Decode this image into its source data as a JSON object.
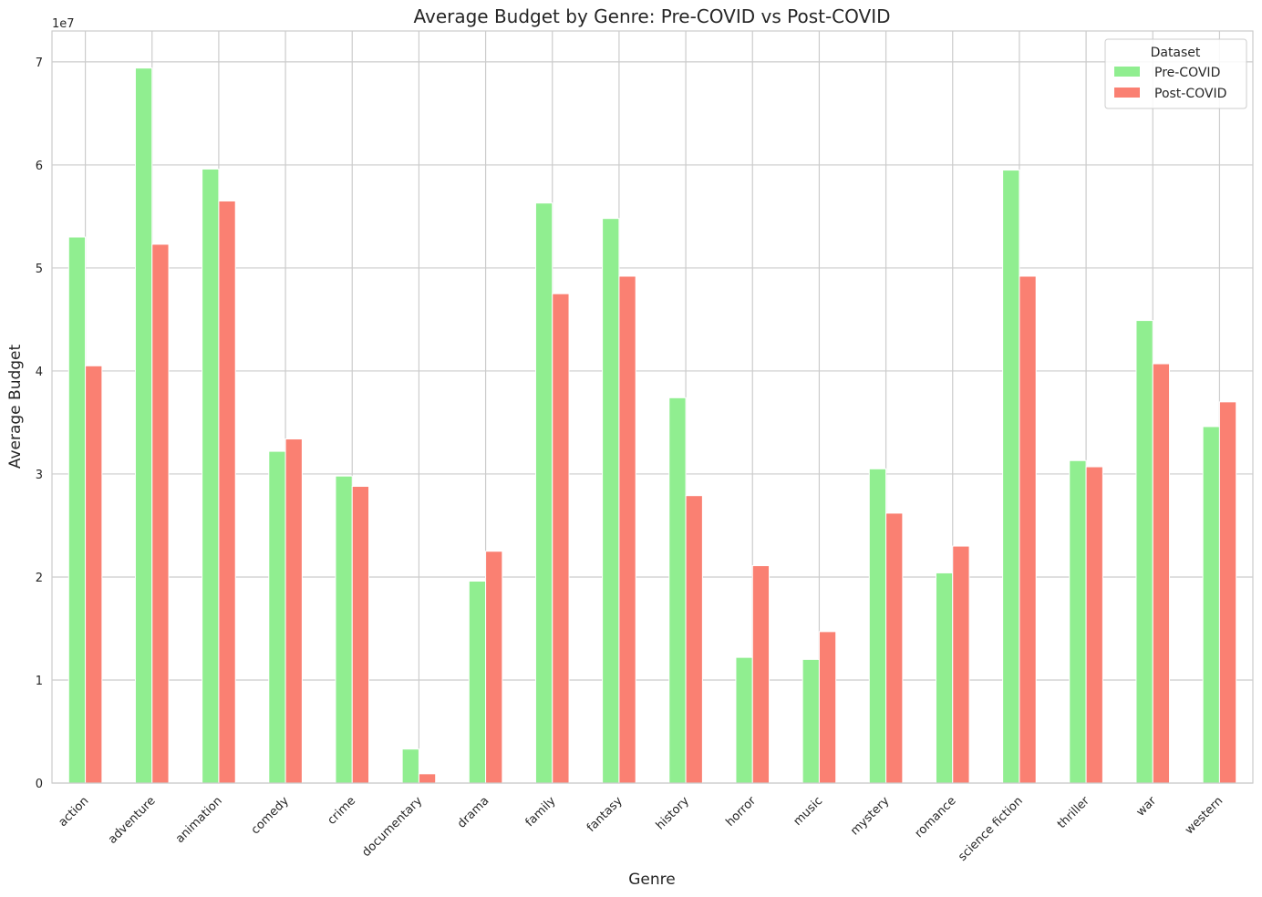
{
  "chart_data": {
    "type": "bar",
    "title": "Average Budget by Genre: Pre-COVID vs Post-COVID",
    "xlabel": "Genre",
    "ylabel": "Average Budget",
    "y_offset_label": "1e7",
    "y_scale": 10000000,
    "ylim": [
      0,
      7.3
    ],
    "yticks": [
      0,
      1,
      2,
      3,
      4,
      5,
      6,
      7
    ],
    "grid": true,
    "legend": {
      "title": "Dataset",
      "placement": "top-right"
    },
    "categories": [
      "action",
      "adventure",
      "animation",
      "comedy",
      "crime",
      "documentary",
      "drama",
      "family",
      "fantasy",
      "history",
      "horror",
      "music",
      "mystery",
      "romance",
      "science fiction",
      "thriller",
      "war",
      "western"
    ],
    "series": [
      {
        "name": "Pre-COVID",
        "color": "#90ee90",
        "values": [
          5.3,
          6.94,
          5.96,
          3.22,
          2.98,
          0.33,
          1.96,
          5.63,
          5.48,
          3.74,
          1.22,
          1.2,
          3.05,
          2.04,
          5.95,
          3.13,
          4.49,
          3.46
        ]
      },
      {
        "name": "Post-COVID",
        "color": "#fa8072",
        "values": [
          4.05,
          5.23,
          5.65,
          3.34,
          2.88,
          0.09,
          2.25,
          4.75,
          4.92,
          2.79,
          2.11,
          1.47,
          2.62,
          2.3,
          4.92,
          3.07,
          4.07,
          3.7
        ]
      }
    ]
  }
}
